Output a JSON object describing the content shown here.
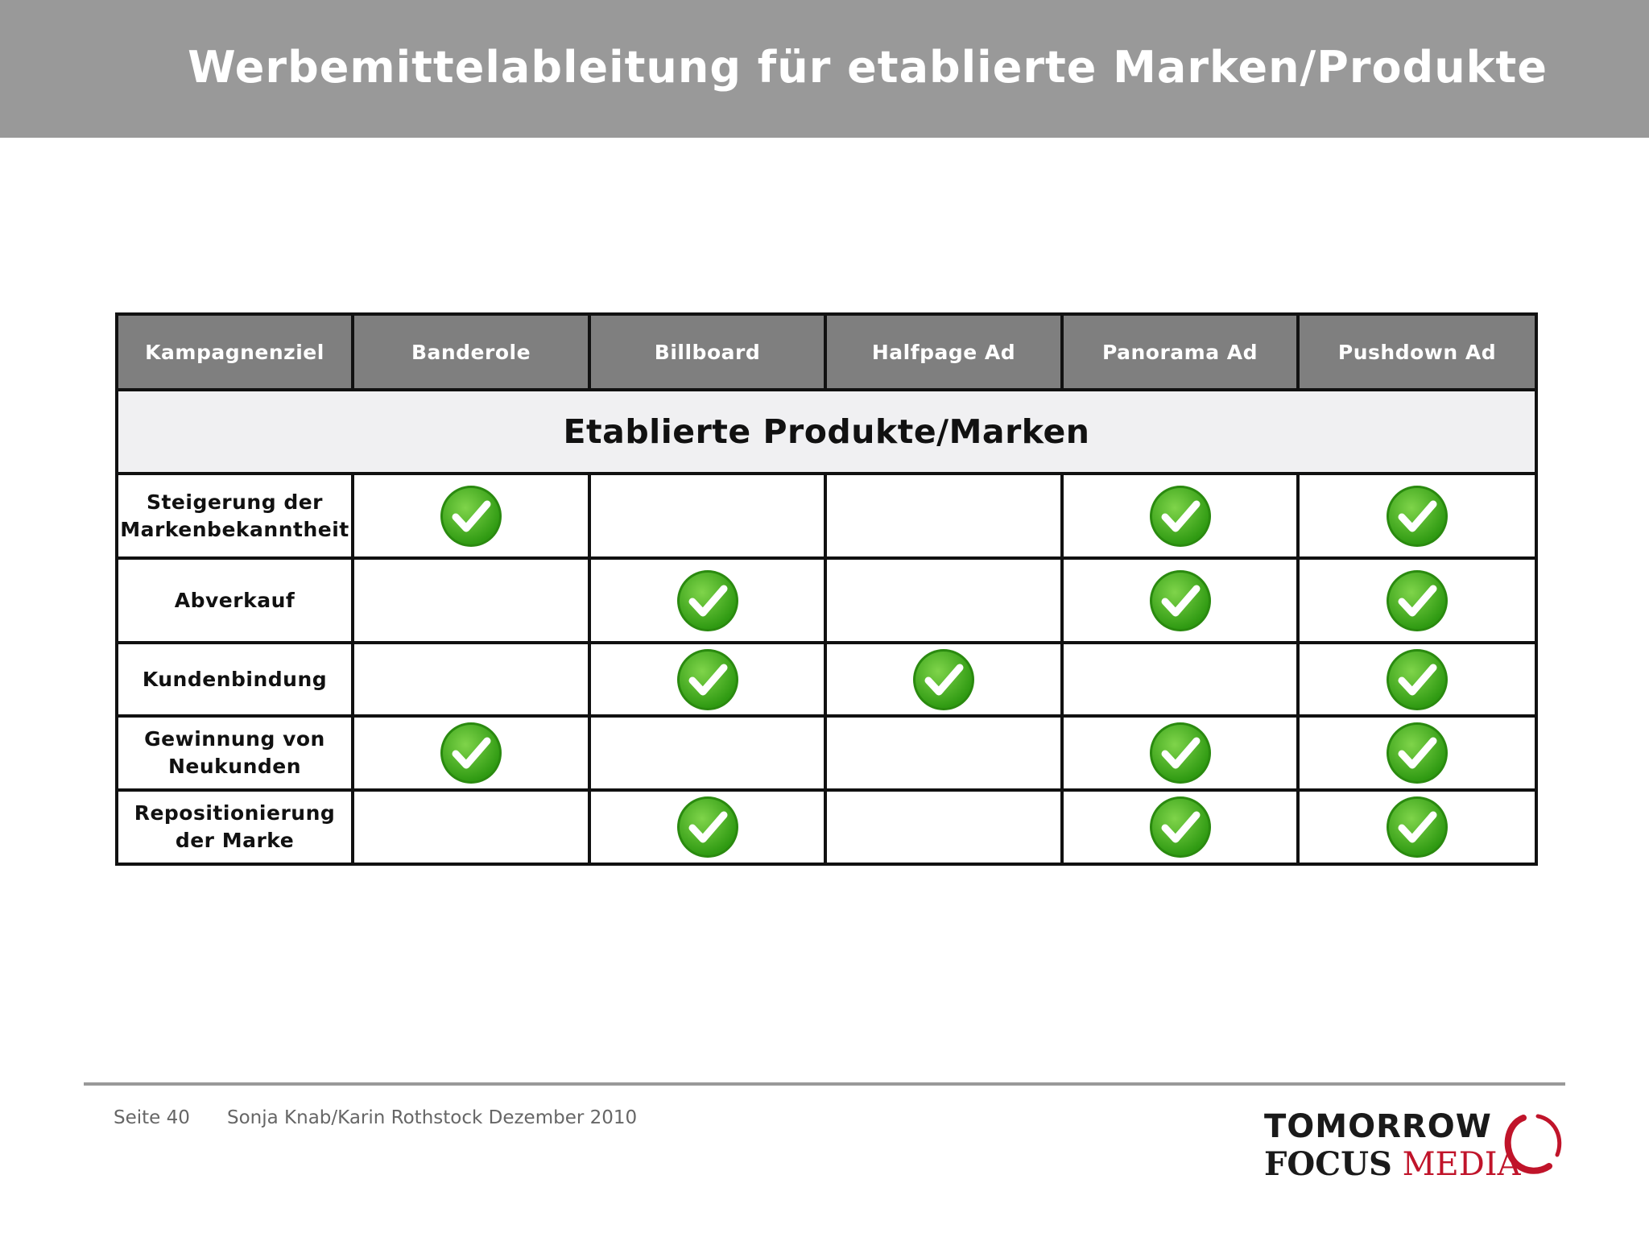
{
  "header": {
    "title": "Werbemittelableitung für etablierte Marken/Produkte"
  },
  "table": {
    "columns": [
      "Kampagnenziel",
      "Banderole",
      "Billboard",
      "Halfpage Ad",
      "Panorama Ad",
      "Pushdown Ad"
    ],
    "section_title": "Etablierte Produkte/Marken",
    "rows": [
      {
        "label": "Steigerung der Markenbekanntheit",
        "checks": [
          true,
          false,
          false,
          true,
          true
        ]
      },
      {
        "label": "Abverkauf",
        "checks": [
          false,
          true,
          false,
          true,
          true
        ]
      },
      {
        "label": "Kundenbindung",
        "checks": [
          false,
          true,
          true,
          false,
          true
        ]
      },
      {
        "label": "Gewinnung von Neukunden",
        "checks": [
          true,
          false,
          false,
          true,
          true
        ]
      },
      {
        "label": "Repositionierung der Marke",
        "checks": [
          false,
          true,
          false,
          true,
          true
        ]
      }
    ],
    "check_icon": "green-checkmark-icon",
    "check_color": "#3aa617"
  },
  "footer": {
    "page": "Seite 40",
    "author": "Sonja Knab/Karin Rothstock Dezember 2010"
  },
  "logo": {
    "line1": "TOMORROW",
    "focus": "FOCUS",
    "media": "MEDIA",
    "accent": "#c0142a"
  },
  "colors": {
    "header_bar": "#999999",
    "table_header": "#7f7f7f",
    "section_bg": "#f0f0f2"
  }
}
